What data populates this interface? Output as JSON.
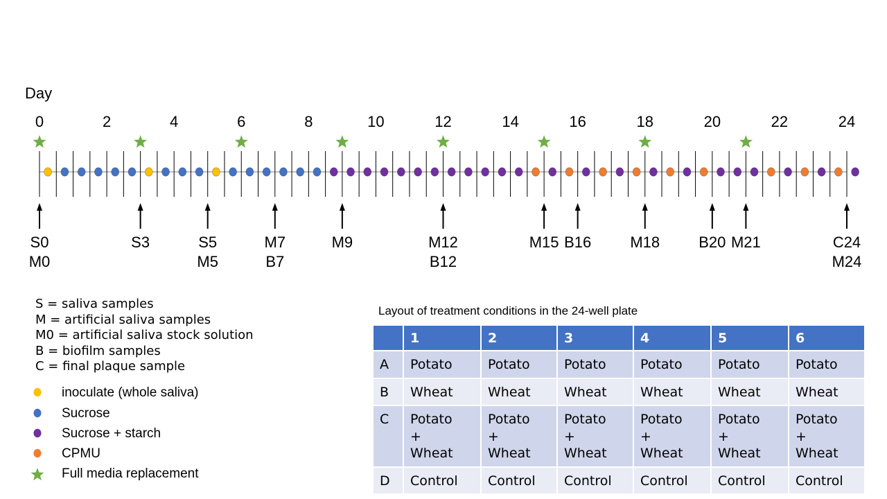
{
  "colors": {
    "inoculate": "#ffc000",
    "sucrose": "#4472c4",
    "sucrose_starch": "#7030a0",
    "cpmu": "#ed7d31",
    "star": "#70ad47"
  },
  "timeline": {
    "axis_title": "Day",
    "day_labels": [
      "0",
      "2",
      "4",
      "6",
      "8",
      "10",
      "12",
      "14",
      "16",
      "18",
      "20",
      "22",
      "24"
    ],
    "media_sequence": [
      "inoculate",
      "sucrose",
      "sucrose",
      "sucrose",
      "sucrose",
      "sucrose",
      "inoculate",
      "sucrose",
      "sucrose",
      "sucrose",
      "inoculate",
      "sucrose",
      "sucrose",
      "sucrose",
      "sucrose",
      "sucrose",
      "sucrose",
      "sucrose_starch",
      "sucrose_starch",
      "sucrose_starch",
      "sucrose_starch",
      "sucrose_starch",
      "sucrose_starch",
      "sucrose_starch",
      "sucrose_starch",
      "sucrose_starch",
      "sucrose_starch",
      "sucrose_starch",
      "sucrose_starch",
      "cpmu",
      "sucrose_starch",
      "cpmu",
      "sucrose_starch",
      "cpmu",
      "sucrose_starch",
      "cpmu",
      "sucrose_starch",
      "cpmu",
      "sucrose_starch",
      "cpmu",
      "sucrose_starch",
      "sucrose_starch",
      "sucrose_starch",
      "cpmu",
      "sucrose_starch",
      "cpmu",
      "sucrose_starch",
      "cpmu",
      "sucrose_starch"
    ],
    "replacement_days": [
      0,
      3,
      6,
      9,
      12,
      15,
      18,
      21
    ],
    "samples": [
      {
        "day": 0,
        "lines": [
          "S0",
          "M0"
        ]
      },
      {
        "day": 3,
        "lines": [
          "S3"
        ]
      },
      {
        "day": 5,
        "lines": [
          "S5",
          "M5"
        ]
      },
      {
        "day": 7,
        "lines": [
          "M7",
          "B7"
        ]
      },
      {
        "day": 9,
        "lines": [
          "M9"
        ]
      },
      {
        "day": 12,
        "lines": [
          "M12",
          "B12"
        ]
      },
      {
        "day": 15,
        "lines": [
          "M15"
        ]
      },
      {
        "day": 16,
        "lines": [
          "B16"
        ]
      },
      {
        "day": 18,
        "lines": [
          "M18"
        ]
      },
      {
        "day": 20,
        "lines": [
          "B20"
        ]
      },
      {
        "day": 21,
        "lines": [
          "M21"
        ]
      },
      {
        "day": 24,
        "lines": [
          "C24",
          "M24"
        ]
      }
    ]
  },
  "abbreviations": [
    "S = saliva samples",
    "M = artificial saliva samples",
    "M0 = artificial saliva stock solution",
    "B = biofilm samples",
    "C = final plaque sample"
  ],
  "legend": [
    {
      "key": "inoculate",
      "icon": "yellow-dot",
      "label": "inoculate (whole saliva)"
    },
    {
      "key": "sucrose",
      "icon": "blue-dot",
      "label": "Sucrose"
    },
    {
      "key": "sucrose_starch",
      "icon": "purple-dot",
      "label": "Sucrose + starch"
    },
    {
      "key": "cpmu",
      "icon": "orange-dot",
      "label": "CPMU"
    },
    {
      "key": "star",
      "icon": "green-star",
      "label": "Full media replacement"
    }
  ],
  "plate": {
    "title": "Layout of treatment conditions in the 24-well plate",
    "columns": [
      "",
      "1",
      "2",
      "3",
      "4",
      "5",
      "6"
    ],
    "rows": [
      {
        "label": "A",
        "cells": [
          "Potato",
          "Potato",
          "Potato",
          "Potato",
          "Potato",
          "Potato"
        ]
      },
      {
        "label": "B",
        "cells": [
          "Wheat",
          "Wheat",
          "Wheat",
          "Wheat",
          "Wheat",
          "Wheat"
        ]
      },
      {
        "label": "C",
        "cells": [
          "Potato\n+\nWheat",
          "Potato\n+\nWheat",
          "Potato\n+\nWheat",
          "Potato\n+\nWheat",
          "Potato\n+\nWheat",
          "Potato\n+\nWheat"
        ]
      },
      {
        "label": "D",
        "cells": [
          "Control",
          "Control",
          "Control",
          "Control",
          "Control",
          "Control"
        ]
      }
    ]
  }
}
